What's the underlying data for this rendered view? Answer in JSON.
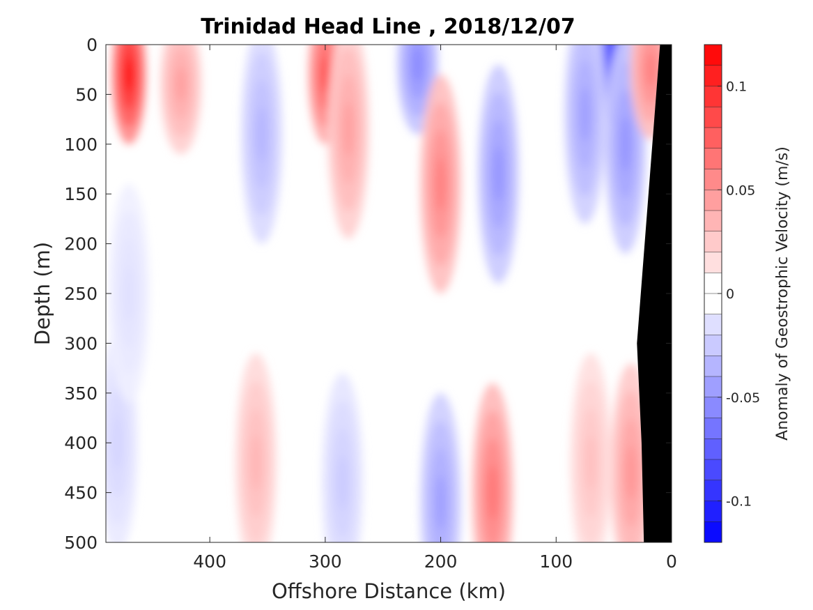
{
  "chart_data": {
    "type": "heatmap",
    "title": "Trinidad Head Line , 2018/12/07",
    "xlabel": "Offshore Distance (km)",
    "ylabel": "Depth (m)",
    "xlim": [
      490,
      0
    ],
    "x_reversed": true,
    "ylim": [
      0,
      500
    ],
    "y_reversed": true,
    "x_ticks": [
      400,
      300,
      200,
      100,
      0
    ],
    "x_tick_labels": [
      "400",
      "300",
      "200",
      "100",
      "0"
    ],
    "y_ticks": [
      0,
      50,
      100,
      150,
      200,
      250,
      300,
      350,
      400,
      450,
      500
    ],
    "y_tick_labels": [
      "0",
      "50",
      "100",
      "150",
      "200",
      "250",
      "300",
      "350",
      "400",
      "450",
      "500"
    ],
    "colorbar": {
      "label": "Anomaly of Geostrophic Velocity (m/s)",
      "range": [
        -0.12,
        0.12
      ],
      "level_step": 0.01,
      "ticks": [
        0.1,
        0.05,
        0,
        -0.05,
        -0.1
      ],
      "tick_labels": [
        "0.1",
        "0.05",
        "0",
        "-0.05",
        "-0.1"
      ],
      "negative_color": "#0000ff",
      "positive_color": "#ff0000",
      "neutral_color": "#ffffff"
    },
    "bathymetry_color": "#000000",
    "bathymetry": [
      [
        10,
        0
      ],
      [
        30,
        300
      ],
      [
        26,
        400
      ],
      [
        24,
        500
      ]
    ],
    "grid": false,
    "colorbar_placement": "right",
    "features": [
      {
        "x": 470,
        "depth": 30,
        "value": 0.11
      },
      {
        "x": 425,
        "depth": 40,
        "value": 0.045
      },
      {
        "x": 300,
        "depth": 30,
        "value": 0.08
      },
      {
        "x": 280,
        "depth": 85,
        "value": 0.045
      },
      {
        "x": 220,
        "depth": 20,
        "value": -0.055
      },
      {
        "x": 200,
        "depth": 140,
        "value": 0.06
      },
      {
        "x": 150,
        "depth": 130,
        "value": -0.05
      },
      {
        "x": 50,
        "depth": 10,
        "value": -0.09
      },
      {
        "x": 40,
        "depth": 100,
        "value": -0.05
      },
      {
        "x": 75,
        "depth": 70,
        "value": -0.045
      },
      {
        "x": 18,
        "depth": 25,
        "value": 0.06
      },
      {
        "x": 355,
        "depth": 90,
        "value": -0.035
      },
      {
        "x": 360,
        "depth": 420,
        "value": 0.035
      },
      {
        "x": 285,
        "depth": 440,
        "value": -0.025
      },
      {
        "x": 200,
        "depth": 460,
        "value": -0.045
      },
      {
        "x": 155,
        "depth": 450,
        "value": 0.065
      },
      {
        "x": 35,
        "depth": 430,
        "value": 0.05
      },
      {
        "x": 70,
        "depth": 420,
        "value": 0.03
      },
      {
        "x": 480,
        "depth": 400,
        "value": -0.02
      },
      {
        "x": 470,
        "depth": 250,
        "value": -0.015
      }
    ]
  }
}
